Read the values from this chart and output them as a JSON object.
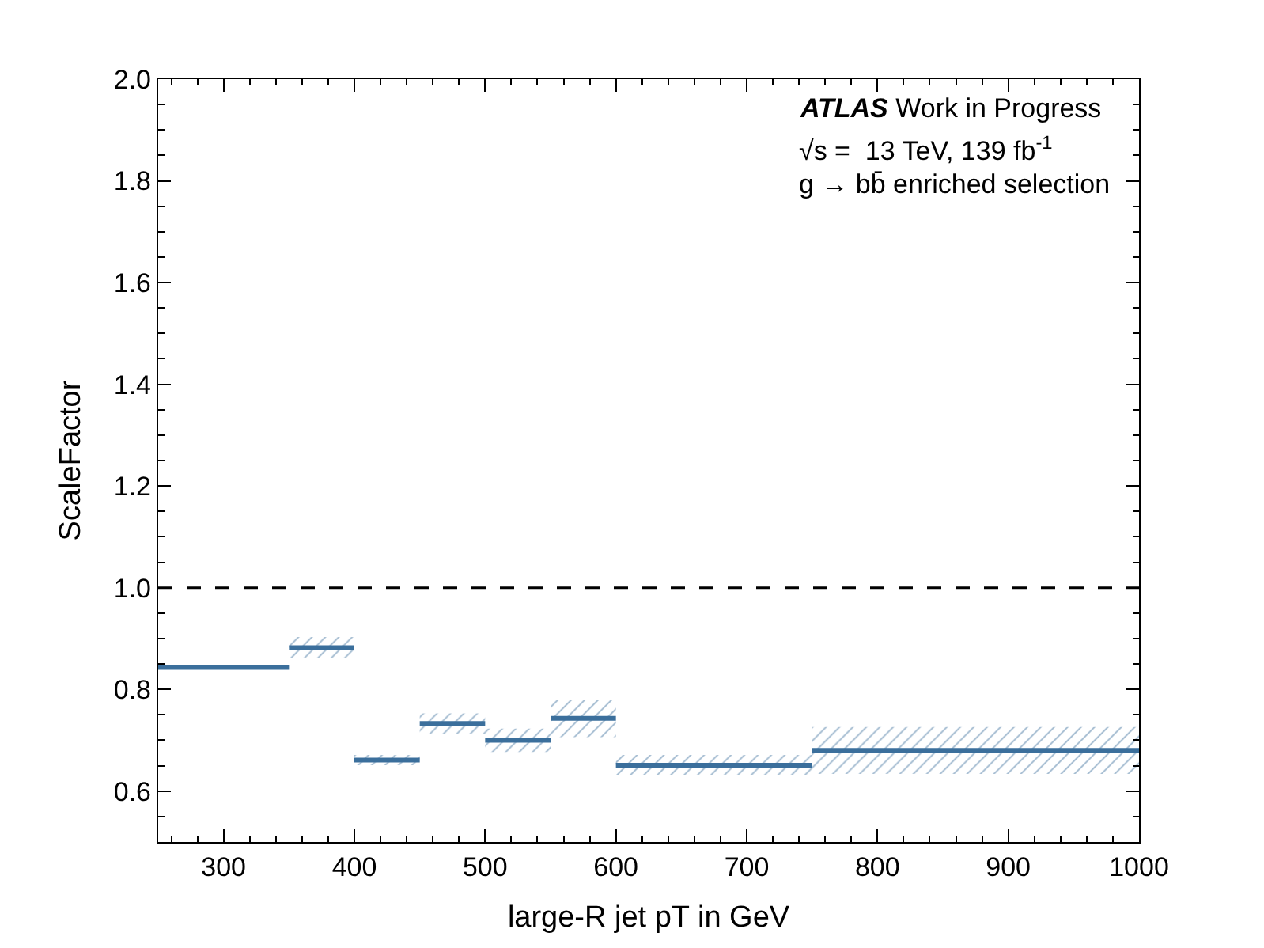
{
  "chart_data": {
    "type": "line",
    "xlabel": "large-R jet pT in GeV",
    "ylabel": "ScaleFactor",
    "series": [
      {
        "x": [
          250,
          350
        ],
        "values": [
          0.843,
          0.843
        ],
        "color": "#3b6f9c"
      },
      {
        "x": [
          350,
          400
        ],
        "values": [
          0.882,
          0.882
        ],
        "lower": [
          0.861,
          0.861
        ],
        "upper": [
          0.903,
          0.903
        ],
        "color": "#3b6f9c"
      },
      {
        "x": [
          400,
          450
        ],
        "values": [
          0.661,
          0.661
        ],
        "lower": [
          0.651,
          0.651
        ],
        "upper": [
          0.671,
          0.671
        ],
        "color": "#3b6f9c"
      },
      {
        "x": [
          450,
          500
        ],
        "values": [
          0.733,
          0.733
        ],
        "lower": [
          0.713,
          0.713
        ],
        "upper": [
          0.753,
          0.753
        ],
        "color": "#3b6f9c"
      },
      {
        "x": [
          500,
          550
        ],
        "values": [
          0.7,
          0.7
        ],
        "lower": [
          0.677,
          0.677
        ],
        "upper": [
          0.723,
          0.723
        ],
        "color": "#3b6f9c"
      },
      {
        "x": [
          550,
          600
        ],
        "values": [
          0.743,
          0.743
        ],
        "lower": [
          0.706,
          0.706
        ],
        "upper": [
          0.78,
          0.78
        ],
        "color": "#3b6f9c"
      },
      {
        "x": [
          600,
          750
        ],
        "values": [
          0.651,
          0.651
        ],
        "lower": [
          0.631,
          0.631
        ],
        "upper": [
          0.671,
          0.671
        ],
        "color": "#3b6f9c"
      },
      {
        "x": [
          750,
          1000
        ],
        "values": [
          0.68,
          0.68
        ],
        "lower": [
          0.634,
          0.634
        ],
        "upper": [
          0.726,
          0.726
        ],
        "color": "#3b6f9c"
      }
    ],
    "xlim": [
      250,
      1000
    ],
    "xticks": [
      300,
      400,
      500,
      600,
      700,
      800,
      900,
      1000
    ],
    "ylim": [
      0.5,
      2.0
    ],
    "yticks": [
      0.6,
      0.8,
      {
        "value": 1,
        "label": "1.0"
      },
      1.2,
      1.4,
      1.6,
      1.8,
      {
        "value": 2,
        "label": "2.0"
      }
    ],
    "ref_lines": [
      {
        "axis": "y",
        "value": 1.0,
        "color": "#000000",
        "line_style": "dashed"
      }
    ],
    "annotations": [
      "ATLAS Work in Progress",
      "√s =  13 TeV, 139 fb$^{-1}$",
      "g → bb̄ enriched selection"
    ],
    "line_style": "solid",
    "marker": "none"
  }
}
